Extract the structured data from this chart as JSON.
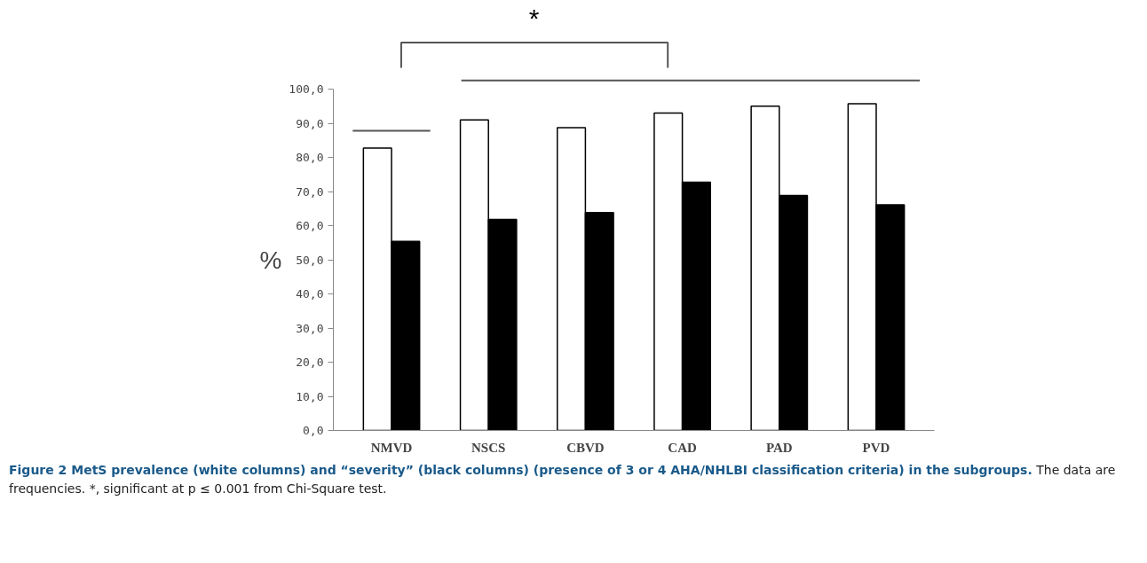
{
  "chart_data": {
    "type": "bar",
    "title": "Figure 2 MetS prevalence (white columns) and “severity” (black columns) (presence of 3 or 4 AHA/NHLBI classification criteria) in the subgroups.",
    "ylabel": "%",
    "categories": [
      "NMVD",
      "NSCS",
      "CBVD",
      "CAD",
      "PAD",
      "PVD"
    ],
    "series": [
      {
        "color": "#ffffff",
        "values": [
          82.7,
          91.0,
          88.7,
          93.0,
          95.0,
          95.7
        ]
      },
      {
        "color": "#000000",
        "values": [
          55.4,
          61.8,
          63.8,
          72.7,
          68.8,
          66.1
        ]
      }
    ],
    "ylim": [
      0,
      100
    ],
    "yticks": [
      {
        "value": 0,
        "label": "0,0"
      },
      {
        "value": 10,
        "label": "10,0"
      },
      {
        "value": 20,
        "label": "20,0"
      },
      {
        "value": 30,
        "label": "30,0"
      },
      {
        "value": 40,
        "label": "40,0"
      },
      {
        "value": 50,
        "label": "50,0"
      },
      {
        "value": 60,
        "label": "60,0"
      },
      {
        "value": 70,
        "label": "70,0"
      },
      {
        "value": 80,
        "label": "80,0"
      },
      {
        "value": 90,
        "label": "90,0"
      },
      {
        "value": 100,
        "label": "100,0"
      }
    ],
    "grid": false,
    "ref_lines": [
      {
        "axis": "y",
        "value": 87.8,
        "color": "#555555"
      }
    ],
    "annotations": [
      "*",
      "The data are frequencies. *, significant at p ≤ 0.001 from Chi-Square test."
    ]
  }
}
